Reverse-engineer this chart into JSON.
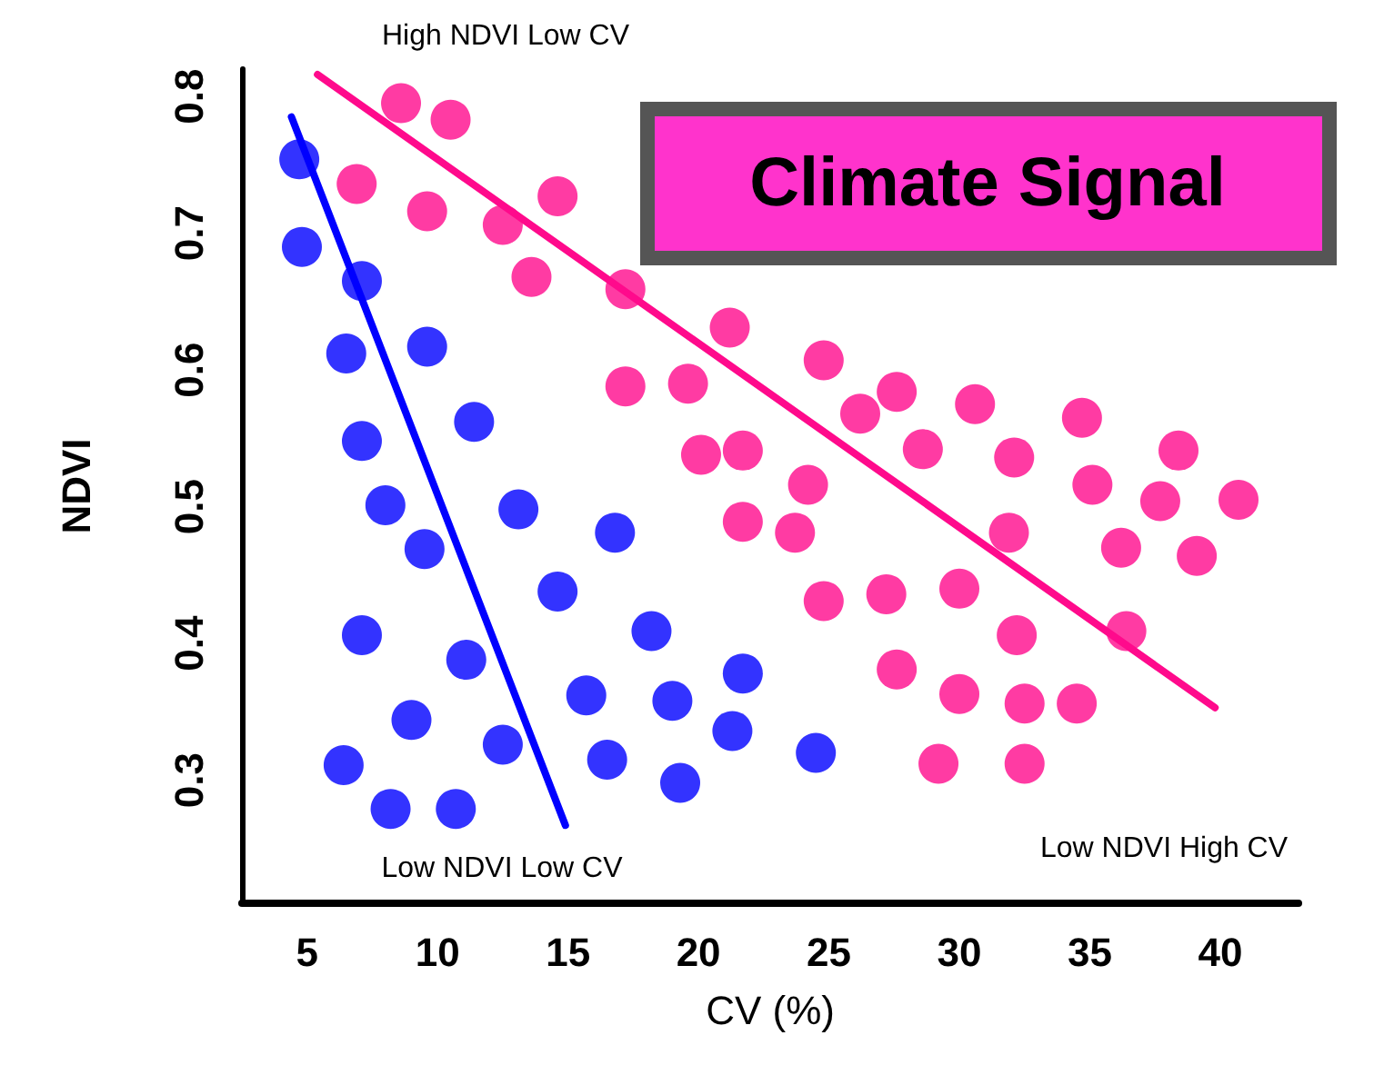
{
  "chart_data": {
    "type": "scatter",
    "title": "Climate Signal",
    "xlabel": "CV (%)",
    "ylabel": "NDVI",
    "xlim": [
      2.5,
      43
    ],
    "ylim": [
      0.21,
      0.82
    ],
    "xticks": [
      5,
      10,
      15,
      20,
      25,
      30,
      35,
      40
    ],
    "yticks": [
      0.3,
      0.4,
      0.5,
      0.6,
      0.7,
      0.8
    ],
    "grid": false,
    "marker": "circle",
    "series": [
      {
        "color": "#0000ff",
        "x": [
          4.7,
          4.8,
          7.1,
          6.5,
          9.6,
          7.1,
          11.4,
          8.0,
          13.1,
          9.5,
          16.8,
          14.6,
          7.1,
          11.1,
          18.2,
          6.4,
          9.0,
          12.5,
          15.7,
          16.5,
          19.0,
          19.3,
          21.7,
          21.3,
          24.5,
          8.2,
          10.7
        ],
        "values": [
          0.754,
          0.69,
          0.665,
          0.612,
          0.617,
          0.548,
          0.562,
          0.501,
          0.498,
          0.469,
          0.481,
          0.438,
          0.406,
          0.388,
          0.409,
          0.311,
          0.344,
          0.326,
          0.362,
          0.315,
          0.358,
          0.298,
          0.378,
          0.336,
          0.32,
          0.279,
          0.279
        ]
      },
      {
        "color": "#ff0a8c",
        "x": [
          8.6,
          10.5,
          6.9,
          9.6,
          12.5,
          14.6,
          13.6,
          17.2,
          17.2,
          19.6,
          21.2,
          20.1,
          21.7,
          24.8,
          26.2,
          27.6,
          24.2,
          21.7,
          23.7,
          28.6,
          30.6,
          32.1,
          31.9,
          34.7,
          35.1,
          36.2,
          37.7,
          38.4,
          39.1,
          40.7,
          24.8,
          27.2,
          30.0,
          27.6,
          30.0,
          32.2,
          32.5,
          34.5,
          36.4,
          29.2,
          32.5
        ],
        "values": [
          0.795,
          0.783,
          0.736,
          0.716,
          0.706,
          0.727,
          0.668,
          0.659,
          0.588,
          0.59,
          0.631,
          0.538,
          0.541,
          0.607,
          0.568,
          0.584,
          0.516,
          0.489,
          0.481,
          0.542,
          0.575,
          0.536,
          0.481,
          0.565,
          0.516,
          0.47,
          0.504,
          0.541,
          0.464,
          0.505,
          0.431,
          0.436,
          0.44,
          0.381,
          0.363,
          0.406,
          0.356,
          0.356,
          0.409,
          0.312,
          0.312
        ]
      },
      {
        "type": "line",
        "color": "#0000ff",
        "marker": "none",
        "line_style": "solid",
        "x": [
          4.4,
          14.9
        ],
        "values": [
          0.785,
          0.267
        ]
      },
      {
        "type": "line",
        "color": "#ff0a8c",
        "marker": "none",
        "line_style": "solid",
        "x": [
          5.4,
          39.8
        ],
        "values": [
          0.816,
          0.353
        ]
      }
    ],
    "annotations": [
      "High NDVI Low CV",
      "Low NDVI Low CV",
      "Low NDVI High CV"
    ]
  }
}
